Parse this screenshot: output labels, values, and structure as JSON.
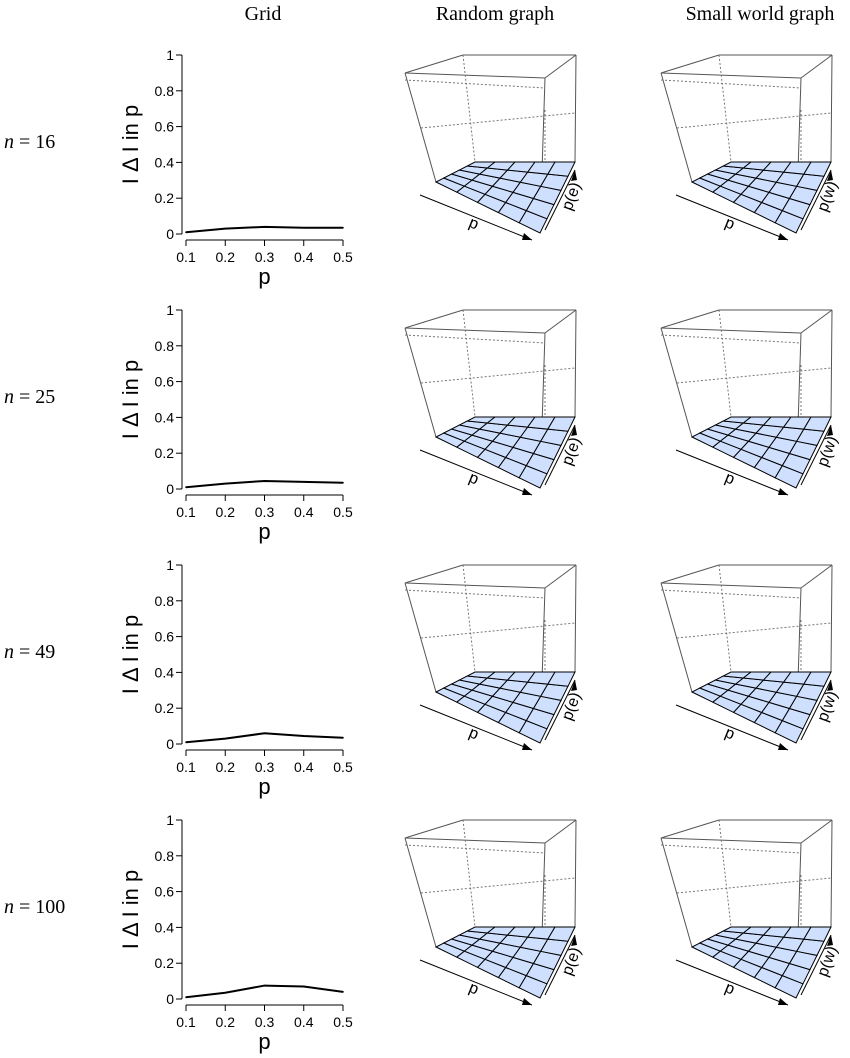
{
  "columns": [
    "Grid",
    "Random graph",
    "Small world graph"
  ],
  "rows": [
    {
      "n_prefix": "n",
      "n_eq": " = ",
      "n_value": "16"
    },
    {
      "n_prefix": "n",
      "n_eq": " = ",
      "n_value": "25"
    },
    {
      "n_prefix": "n",
      "n_eq": " = ",
      "n_value": "49"
    },
    {
      "n_prefix": "n",
      "n_eq": " = ",
      "n_value": "100"
    }
  ],
  "persp_labels": {
    "random": {
      "x": "p",
      "y": "p(e)"
    },
    "smallworld": {
      "x": "p",
      "y": "p(w)"
    }
  },
  "chart_data": [
    {
      "type": "line",
      "panel": "Grid, n = 16",
      "x": [
        0.1,
        0.2,
        0.3,
        0.4,
        0.5
      ],
      "values": [
        0.01,
        0.03,
        0.04,
        0.035,
        0.035
      ],
      "xlabel": "p",
      "ylabel": "I Δ I in p",
      "xlim": [
        0.1,
        0.5
      ],
      "ylim": [
        0,
        1
      ],
      "xticks": [
        "0.1",
        "0.2",
        "0.3",
        "0.4",
        "0.5"
      ],
      "yticks": [
        "0",
        "0.2",
        "0.4",
        "0.6",
        "0.8",
        "1"
      ]
    },
    {
      "type": "line",
      "panel": "Grid, n = 25",
      "x": [
        0.1,
        0.2,
        0.3,
        0.4,
        0.5
      ],
      "values": [
        0.01,
        0.03,
        0.045,
        0.04,
        0.035
      ],
      "xlabel": "p",
      "ylabel": "I Δ I in p",
      "xlim": [
        0.1,
        0.5
      ],
      "ylim": [
        0,
        1
      ],
      "xticks": [
        "0.1",
        "0.2",
        "0.3",
        "0.4",
        "0.5"
      ],
      "yticks": [
        "0",
        "0.2",
        "0.4",
        "0.6",
        "0.8",
        "1"
      ]
    },
    {
      "type": "line",
      "panel": "Grid, n = 49",
      "x": [
        0.1,
        0.2,
        0.3,
        0.4,
        0.5
      ],
      "values": [
        0.01,
        0.03,
        0.06,
        0.045,
        0.035
      ],
      "xlabel": "p",
      "ylabel": "I Δ I in p",
      "xlim": [
        0.1,
        0.5
      ],
      "ylim": [
        0,
        1
      ],
      "xticks": [
        "0.1",
        "0.2",
        "0.3",
        "0.4",
        "0.5"
      ],
      "yticks": [
        "0",
        "0.2",
        "0.4",
        "0.6",
        "0.8",
        "1"
      ]
    },
    {
      "type": "line",
      "panel": "Grid, n = 100",
      "x": [
        0.1,
        0.2,
        0.3,
        0.4,
        0.5
      ],
      "values": [
        0.01,
        0.035,
        0.075,
        0.07,
        0.04
      ],
      "xlabel": "p",
      "ylabel": "I Δ I in p",
      "xlim": [
        0.1,
        0.5
      ],
      "ylim": [
        0,
        1
      ],
      "xticks": [
        "0.1",
        "0.2",
        "0.3",
        "0.4",
        "0.5"
      ],
      "yticks": [
        "0",
        "0.2",
        "0.4",
        "0.6",
        "0.8",
        "1"
      ]
    },
    {
      "type": "surface",
      "panel": "Random graph (4 rows)",
      "grid_size": [
        5,
        5
      ],
      "z_level": 0.02,
      "xlabel": "p",
      "ylabel": "p(e)",
      "surface_color": "#cfe0ff"
    },
    {
      "type": "surface",
      "panel": "Small world graph (4 rows)",
      "grid_size": [
        5,
        5
      ],
      "z_level": 0.02,
      "xlabel": "p",
      "ylabel": "p(w)",
      "surface_color": "#cfe0ff"
    }
  ]
}
